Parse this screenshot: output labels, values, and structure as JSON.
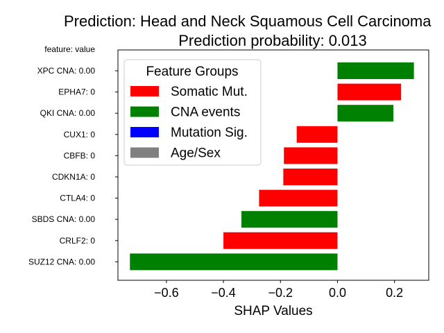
{
  "chart_data": {
    "type": "bar",
    "orientation": "horizontal",
    "title": "Prediction: Head and Neck Squamous Cell Carcinoma",
    "subtitle": "Prediction probability: 0.013",
    "ytick_header": "feature: value",
    "xlabel": "SHAP Values",
    "ylabel": "",
    "xlim": [
      -0.77,
      0.32
    ],
    "xticks": [
      -0.6,
      -0.4,
      -0.2,
      0.0,
      0.2
    ],
    "xtick_labels": [
      "−0.6",
      "−0.4",
      "−0.2",
      "0.0",
      "0.2"
    ],
    "grid": false,
    "legend": {
      "title": "Feature Groups",
      "position": "top-left",
      "entries": [
        {
          "label": "Somatic Mut.",
          "color": "#ff0000"
        },
        {
          "label": "CNA events",
          "color": "#008000"
        },
        {
          "label": "Mutation Sig.",
          "color": "#0000ff"
        },
        {
          "label": "Age/Sex",
          "color": "#808080"
        }
      ]
    },
    "bars": [
      {
        "label": "XPC CNA: 0.00",
        "value": 0.268,
        "group": "CNA events"
      },
      {
        "label": "EPHA7: 0",
        "value": 0.223,
        "group": "Somatic Mut."
      },
      {
        "label": "QKI CNA: 0.00",
        "value": 0.196,
        "group": "CNA events"
      },
      {
        "label": "CUX1: 0",
        "value": -0.143,
        "group": "Somatic Mut."
      },
      {
        "label": "CBFB: 0",
        "value": -0.188,
        "group": "Somatic Mut."
      },
      {
        "label": "CDKN1A: 0",
        "value": -0.19,
        "group": "Somatic Mut."
      },
      {
        "label": "CTLA4: 0",
        "value": -0.275,
        "group": "Somatic Mut."
      },
      {
        "label": "SBDS CNA: 0.00",
        "value": -0.337,
        "group": "CNA events"
      },
      {
        "label": "CRLF2: 0",
        "value": -0.4,
        "group": "Somatic Mut."
      },
      {
        "label": "SUZ12 CNA: 0.00",
        "value": -0.728,
        "group": "CNA events"
      }
    ]
  }
}
